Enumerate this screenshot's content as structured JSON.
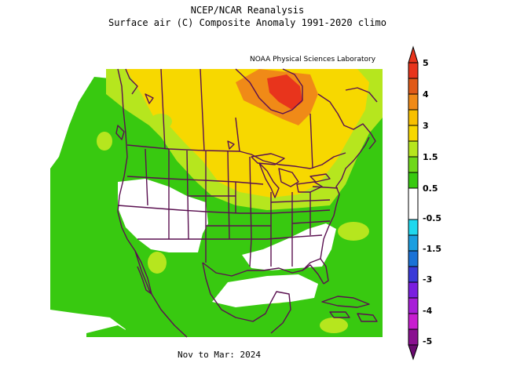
{
  "title_line1": "NCEP/NCAR Reanalysis",
  "title_line2": "Surface air (C) Composite Anomaly 1991-2020 climo",
  "attribution": "NOAA Physical Sciences Laboratory",
  "period": "Nov to Mar: 2024",
  "legend": {
    "labels": [
      "5",
      "4",
      "3",
      "1.5",
      "0.5",
      "-0.5",
      "-1.5",
      "-3",
      "-4",
      "-5"
    ],
    "colors": [
      "#e8341c",
      "#f08a17",
      "#f7d800",
      "#b6e61e",
      "#38c910",
      "#ffffff",
      "#20d8ee",
      "#1a72d6",
      "#7a1fe0",
      "#c81ed0",
      "#6a0a70"
    ]
  },
  "colors": {
    "green": "#38c910",
    "yellow_green": "#b6e61e",
    "yellow": "#f7d800",
    "orange": "#f08a17",
    "red": "#e8341c",
    "boundary": "#5a1050"
  }
}
